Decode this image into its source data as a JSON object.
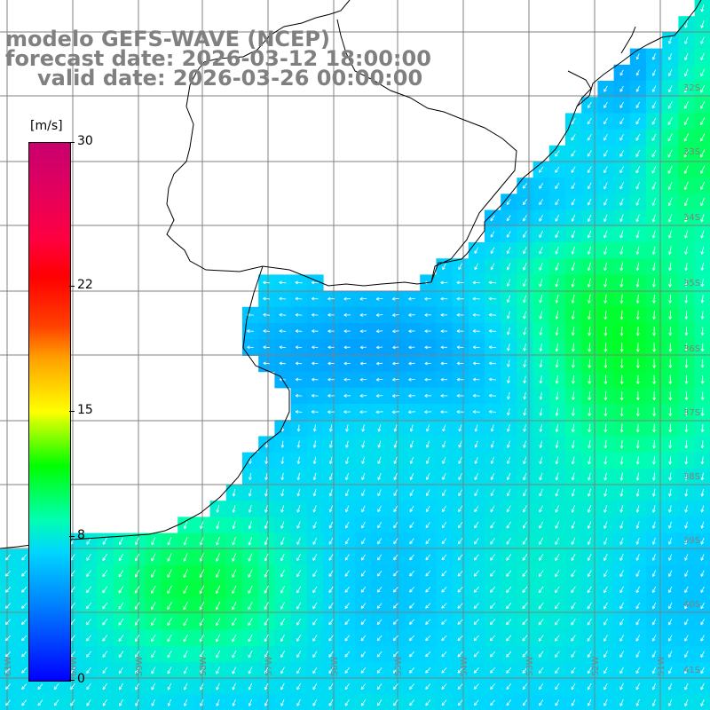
{
  "title": {
    "line1": "modelo GEFS-WAVE (NCEP)",
    "line2": "forecast date: 2026-03-12 18:00:00",
    "line3": "valid date: 2026-03-26 00:00:00"
  },
  "colorbar": {
    "unit": "[m/s]",
    "min": 0,
    "max": 30,
    "tick_labels": [
      "30",
      "22",
      "15",
      "8",
      "0"
    ],
    "tick_values": [
      30,
      22,
      15,
      8,
      0
    ]
  },
  "map": {
    "lat_labels": [
      "32S",
      "33S",
      "34S",
      "35S",
      "36S",
      "37S",
      "38S",
      "39S",
      "40S",
      "41S"
    ],
    "lon_labels": [
      "61W",
      "60W",
      "59W",
      "58W",
      "57W",
      "56W",
      "55W",
      "54W",
      "53W",
      "52W",
      "51W"
    ],
    "colors": {
      "land": "#ffffff",
      "grid": "#808080",
      "coast": "#000000",
      "arrow": "#ffffff",
      "title": "#808080"
    }
  }
}
